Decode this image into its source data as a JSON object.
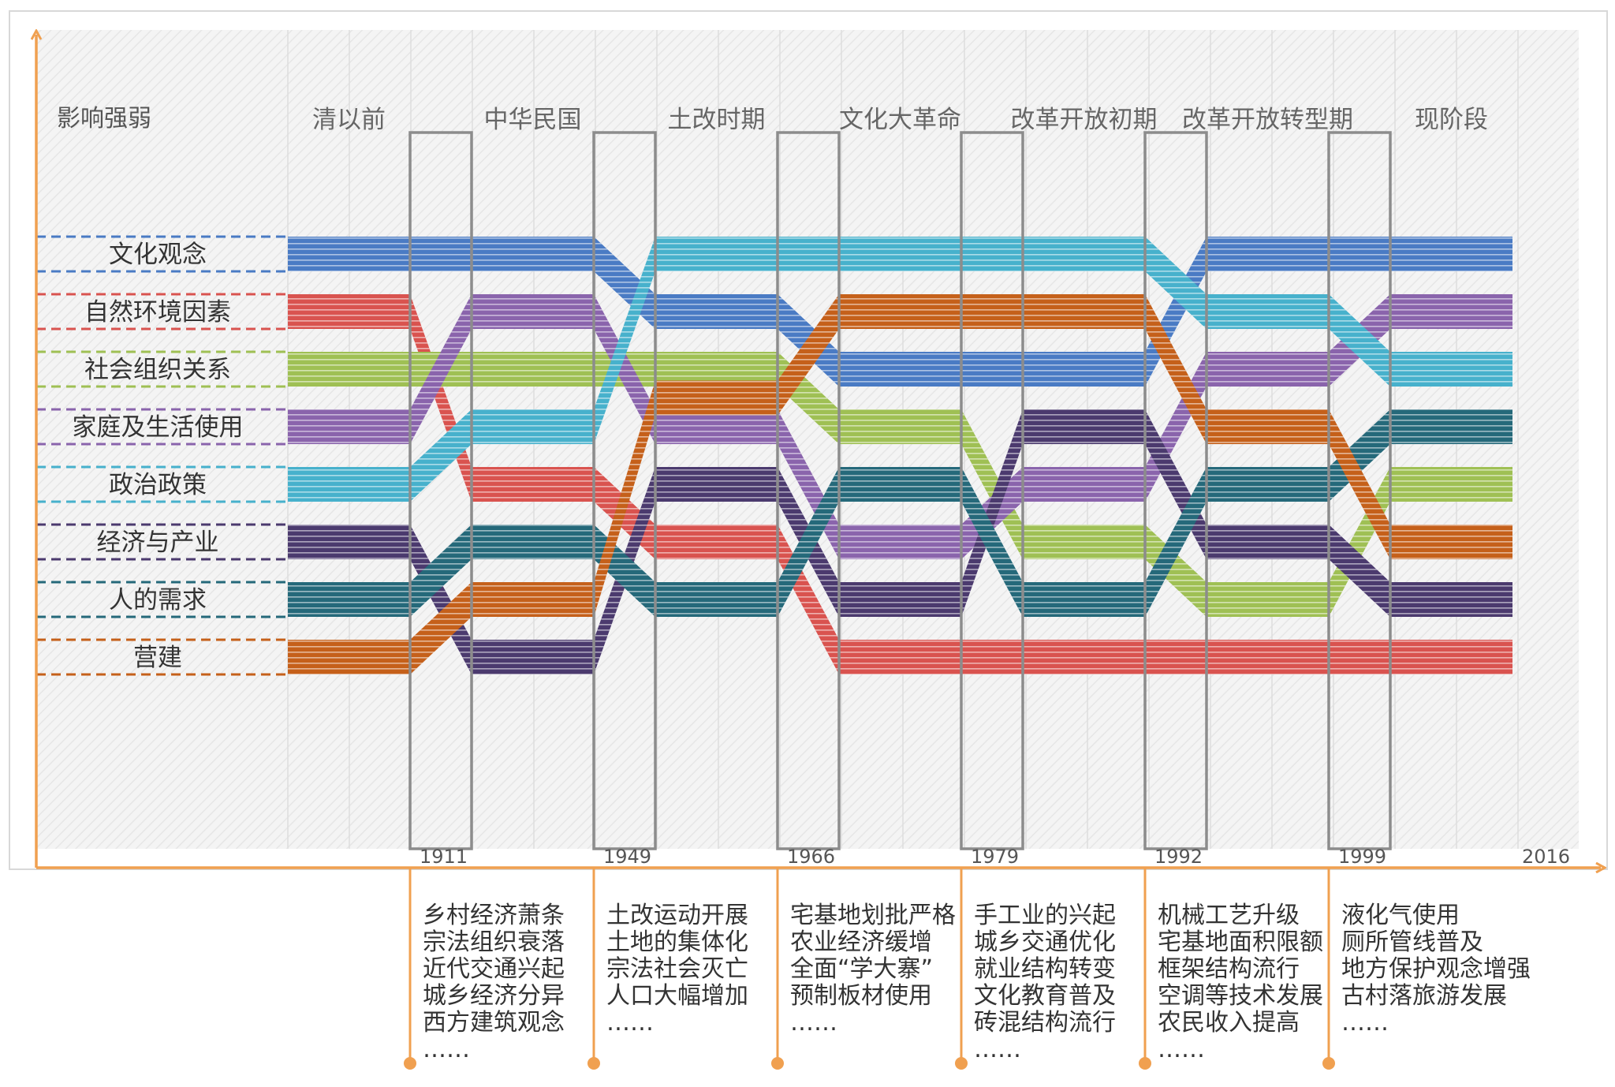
{
  "chart_data": {
    "type": "alluvial",
    "ylabel": "影响强弱",
    "periods": [
      "清以前",
      "中华民国",
      "土改时期",
      "文化大革命",
      "改革开放初期",
      "改革开放转型期",
      "现阶段"
    ],
    "boundaries": [
      "1911",
      "1949",
      "1966",
      "1979",
      "1992",
      "1999",
      "2016"
    ],
    "series": [
      {
        "name": "文化观念",
        "color": "#4a7bc4",
        "ranks": [
          1,
          1,
          2,
          3,
          3,
          1,
          1
        ]
      },
      {
        "name": "自然环境因素",
        "color": "#d9534f",
        "ranks": [
          2,
          5,
          6,
          8,
          8,
          8,
          8
        ]
      },
      {
        "name": "社会组织关系",
        "color": "#9fc054",
        "ranks": [
          3,
          3,
          3,
          4,
          6,
          7,
          5
        ]
      },
      {
        "name": "家庭及生活使用",
        "color": "#8a64ac",
        "ranks": [
          4,
          2,
          4,
          6,
          5,
          3,
          2
        ]
      },
      {
        "name": "政治政策",
        "color": "#47b1cc",
        "ranks": [
          5,
          4,
          1,
          1,
          1,
          2,
          3
        ]
      },
      {
        "name": "经济与产业",
        "color": "#4b3a6e",
        "ranks": [
          6,
          8,
          5,
          7,
          4,
          6,
          7
        ]
      },
      {
        "name": "人的需求",
        "color": "#25697a",
        "ranks": [
          7,
          6,
          7,
          5,
          7,
          5,
          4
        ]
      },
      {
        "name": "营建",
        "color": "#c5601a",
        "ranks": [
          8,
          7,
          3.5,
          2,
          2,
          4,
          6
        ]
      }
    ],
    "events": [
      {
        "year": "1911",
        "lines": [
          "乡村经济萧条",
          "宗法组织衰落",
          "近代交通兴起",
          "城乡经济分异",
          "西方建筑观念",
          "……"
        ]
      },
      {
        "year": "1949",
        "lines": [
          "土改运动开展",
          "土地的集体化",
          "宗法社会灭亡",
          "人口大幅增加",
          "……"
        ]
      },
      {
        "year": "1966",
        "lines": [
          "宅基地划批严格",
          "农业经济缓增",
          "全面“学大寨”",
          "预制板材使用",
          "……"
        ]
      },
      {
        "year": "1979",
        "lines": [
          "手工业的兴起",
          "城乡交通优化",
          "就业结构转变",
          "文化教育普及",
          "砖混结构流行",
          "……"
        ]
      },
      {
        "year": "1992",
        "lines": [
          "机械工艺升级",
          "宅基地面积限额",
          "框架结构流行",
          "空调等技术发展",
          "农民收入提高",
          "……"
        ]
      },
      {
        "year": "1999",
        "lines": [
          "液化气使用",
          "厕所管线普及",
          "地方保护观念增强",
          "古村落旅游发展",
          "……"
        ]
      }
    ],
    "axis_color": "#f0a050",
    "grid": true
  }
}
